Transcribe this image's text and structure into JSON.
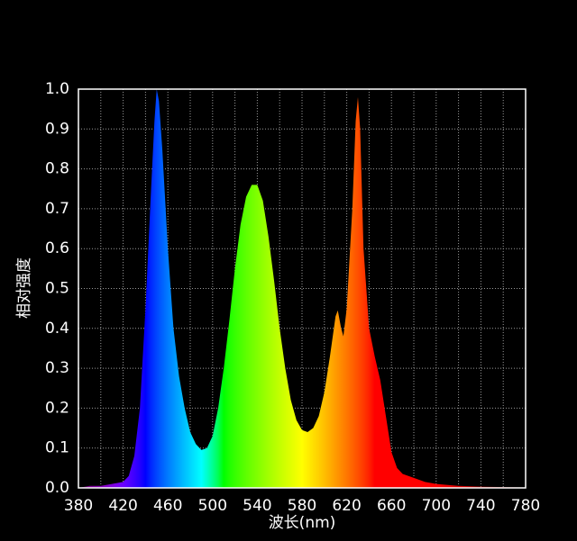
{
  "chart_data": {
    "type": "spectrum",
    "x_label": "波长(nm)",
    "y_label": "相对强度",
    "x": [
      380,
      390,
      400,
      410,
      420,
      425,
      430,
      435,
      440,
      445,
      448,
      450,
      452,
      455,
      460,
      465,
      470,
      475,
      480,
      485,
      490,
      495,
      500,
      505,
      510,
      515,
      520,
      525,
      530,
      535,
      540,
      545,
      550,
      555,
      560,
      565,
      570,
      575,
      580,
      585,
      590,
      595,
      600,
      605,
      610,
      612,
      615,
      617,
      620,
      625,
      628,
      630,
      632,
      635,
      640,
      645,
      650,
      655,
      660,
      665,
      670,
      680,
      690,
      700,
      720,
      740,
      760,
      780
    ],
    "y": [
      0.0,
      0.005,
      0.005,
      0.01,
      0.015,
      0.03,
      0.08,
      0.2,
      0.45,
      0.75,
      0.92,
      1.0,
      0.97,
      0.85,
      0.6,
      0.4,
      0.28,
      0.2,
      0.14,
      0.11,
      0.095,
      0.1,
      0.13,
      0.2,
      0.3,
      0.42,
      0.55,
      0.66,
      0.73,
      0.76,
      0.76,
      0.72,
      0.63,
      0.52,
      0.4,
      0.3,
      0.22,
      0.17,
      0.145,
      0.14,
      0.15,
      0.18,
      0.24,
      0.33,
      0.43,
      0.445,
      0.4,
      0.38,
      0.45,
      0.7,
      0.92,
      0.98,
      0.9,
      0.6,
      0.4,
      0.33,
      0.27,
      0.18,
      0.09,
      0.05,
      0.035,
      0.025,
      0.015,
      0.01,
      0.005,
      0.003,
      0.002,
      0.001
    ],
    "xlim": [
      380,
      780
    ],
    "ylim": [
      0,
      1
    ],
    "xticks": [
      380,
      420,
      460,
      500,
      540,
      580,
      620,
      660,
      700,
      740,
      780
    ],
    "x_minor_ticks": [
      400,
      440,
      480,
      520,
      560,
      600,
      640,
      680,
      720,
      760
    ],
    "yticks": [
      {
        "value": 0,
        "label": "0.0"
      },
      0.1,
      0.2,
      0.3,
      0.4,
      0.5,
      0.6,
      0.7,
      0.8,
      0.9,
      {
        "value": 1,
        "label": "1.0"
      }
    ],
    "grid": true
  }
}
